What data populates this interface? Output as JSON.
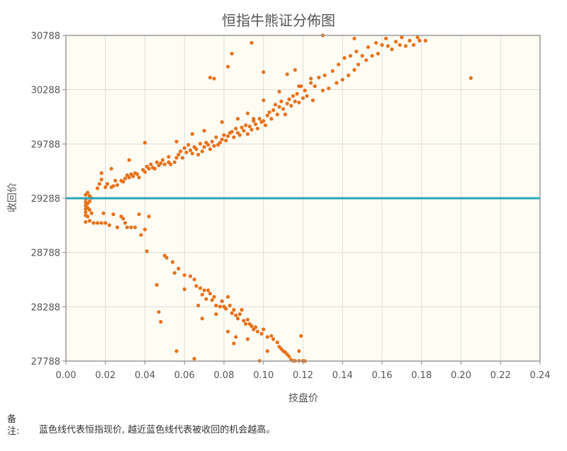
{
  "chart_data": {
    "type": "scatter",
    "title": "恒指牛熊证分佈图",
    "xlabel": "技盘价",
    "ylabel": "收回价",
    "xlim": [
      0,
      0.24
    ],
    "ylim": [
      27788,
      30788
    ],
    "x_ticks": [
      "0.00",
      "0.02",
      "0.04",
      "0.06",
      "0.08",
      "0.10",
      "0.12",
      "0.14",
      "0.16",
      "0.18",
      "0.20",
      "0.22",
      "0.24"
    ],
    "y_ticks": [
      "27788",
      "28288",
      "28788",
      "29288",
      "29788",
      "30288",
      "30788"
    ],
    "reference_line": {
      "y": 29288,
      "color": "#2aa5b8"
    },
    "grid": true,
    "point_color": "#e8701a",
    "plot_background": "#fffdf3",
    "points": [
      [
        0.01,
        29320
      ],
      [
        0.01,
        29280
      ],
      [
        0.01,
        29250
      ],
      [
        0.01,
        29220
      ],
      [
        0.01,
        29190
      ],
      [
        0.01,
        29160
      ],
      [
        0.01,
        29130
      ],
      [
        0.01,
        29070
      ],
      [
        0.011,
        29340
      ],
      [
        0.011,
        29240
      ],
      [
        0.011,
        29200
      ],
      [
        0.011,
        29120
      ],
      [
        0.012,
        29310
      ],
      [
        0.012,
        29260
      ],
      [
        0.012,
        29180
      ],
      [
        0.012,
        29080
      ],
      [
        0.013,
        29290
      ],
      [
        0.013,
        29150
      ],
      [
        0.014,
        29060
      ],
      [
        0.016,
        29060
      ],
      [
        0.018,
        29060
      ],
      [
        0.02,
        29060
      ],
      [
        0.022,
        29040
      ],
      [
        0.016,
        29380
      ],
      [
        0.017,
        29420
      ],
      [
        0.018,
        29460
      ],
      [
        0.02,
        29390
      ],
      [
        0.021,
        29420
      ],
      [
        0.023,
        29390
      ],
      [
        0.024,
        29400
      ],
      [
        0.025,
        29450
      ],
      [
        0.026,
        29410
      ],
      [
        0.028,
        29450
      ],
      [
        0.029,
        29440
      ],
      [
        0.03,
        29470
      ],
      [
        0.031,
        29500
      ],
      [
        0.032,
        29480
      ],
      [
        0.033,
        29510
      ],
      [
        0.034,
        29490
      ],
      [
        0.035,
        29520
      ],
      [
        0.036,
        29510
      ],
      [
        0.037,
        29480
      ],
      [
        0.039,
        29550
      ],
      [
        0.04,
        29530
      ],
      [
        0.041,
        29580
      ],
      [
        0.042,
        29560
      ],
      [
        0.043,
        29600
      ],
      [
        0.044,
        29570
      ],
      [
        0.045,
        29560
      ],
      [
        0.046,
        29620
      ],
      [
        0.047,
        29590
      ],
      [
        0.048,
        29610
      ],
      [
        0.049,
        29640
      ],
      [
        0.05,
        29600
      ],
      [
        0.052,
        29620
      ],
      [
        0.053,
        29600
      ],
      [
        0.055,
        29620
      ],
      [
        0.056,
        29660
      ],
      [
        0.057,
        29690
      ],
      [
        0.058,
        29720
      ],
      [
        0.059,
        29660
      ],
      [
        0.06,
        29750
      ],
      [
        0.061,
        29710
      ],
      [
        0.062,
        29780
      ],
      [
        0.063,
        29730
      ],
      [
        0.064,
        29700
      ],
      [
        0.065,
        29760
      ],
      [
        0.066,
        29740
      ],
      [
        0.067,
        29690
      ],
      [
        0.068,
        29790
      ],
      [
        0.069,
        29720
      ],
      [
        0.07,
        29760
      ],
      [
        0.071,
        29800
      ],
      [
        0.072,
        29780
      ],
      [
        0.073,
        29740
      ],
      [
        0.074,
        29810
      ],
      [
        0.075,
        29770
      ],
      [
        0.076,
        29850
      ],
      [
        0.077,
        29780
      ],
      [
        0.078,
        29800
      ],
      [
        0.079,
        29830
      ],
      [
        0.08,
        29870
      ],
      [
        0.081,
        29820
      ],
      [
        0.082,
        29860
      ],
      [
        0.083,
        29890
      ],
      [
        0.084,
        29900
      ],
      [
        0.085,
        29850
      ],
      [
        0.086,
        29930
      ],
      [
        0.087,
        29890
      ],
      [
        0.088,
        29870
      ],
      [
        0.089,
        29940
      ],
      [
        0.09,
        29910
      ],
      [
        0.091,
        29960
      ],
      [
        0.092,
        29880
      ],
      [
        0.093,
        29950
      ],
      [
        0.094,
        29920
      ],
      [
        0.095,
        30000
      ],
      [
        0.096,
        29970
      ],
      [
        0.097,
        29930
      ],
      [
        0.098,
        30020
      ],
      [
        0.099,
        29990
      ],
      [
        0.1,
        30000
      ],
      [
        0.101,
        29960
      ],
      [
        0.102,
        30050
      ],
      [
        0.103,
        30080
      ],
      [
        0.104,
        30020
      ],
      [
        0.105,
        30100
      ],
      [
        0.106,
        30150
      ],
      [
        0.107,
        30060
      ],
      [
        0.108,
        30130
      ],
      [
        0.109,
        30180
      ],
      [
        0.11,
        30110
      ],
      [
        0.111,
        30060
      ],
      [
        0.112,
        30160
      ],
      [
        0.113,
        30200
      ],
      [
        0.114,
        30140
      ],
      [
        0.115,
        30230
      ],
      [
        0.116,
        30180
      ],
      [
        0.117,
        30250
      ],
      [
        0.118,
        30170
      ],
      [
        0.119,
        30320
      ],
      [
        0.12,
        30210
      ],
      [
        0.121,
        30280
      ],
      [
        0.122,
        30230
      ],
      [
        0.124,
        30350
      ],
      [
        0.125,
        30190
      ],
      [
        0.126,
        30320
      ],
      [
        0.128,
        30400
      ],
      [
        0.13,
        30280
      ],
      [
        0.131,
        30420
      ],
      [
        0.133,
        30300
      ],
      [
        0.135,
        30460
      ],
      [
        0.137,
        30350
      ],
      [
        0.138,
        30520
      ],
      [
        0.14,
        30380
      ],
      [
        0.141,
        30580
      ],
      [
        0.143,
        30420
      ],
      [
        0.144,
        30600
      ],
      [
        0.146,
        30470
      ],
      [
        0.147,
        30640
      ],
      [
        0.148,
        30520
      ],
      [
        0.15,
        30600
      ],
      [
        0.152,
        30560
      ],
      [
        0.153,
        30680
      ],
      [
        0.155,
        30600
      ],
      [
        0.157,
        30720
      ],
      [
        0.158,
        30620
      ],
      [
        0.16,
        30700
      ],
      [
        0.162,
        30760
      ],
      [
        0.163,
        30690
      ],
      [
        0.165,
        30660
      ],
      [
        0.167,
        30730
      ],
      [
        0.169,
        30700
      ],
      [
        0.17,
        30770
      ],
      [
        0.172,
        30690
      ],
      [
        0.174,
        30740
      ],
      [
        0.176,
        30700
      ],
      [
        0.178,
        30770
      ],
      [
        0.179,
        30740
      ],
      [
        0.182,
        30740
      ],
      [
        0.13,
        30788
      ],
      [
        0.146,
        30760
      ],
      [
        0.1,
        30450
      ],
      [
        0.082,
        30500
      ],
      [
        0.073,
        30400
      ],
      [
        0.075,
        30390
      ],
      [
        0.084,
        30620
      ],
      [
        0.094,
        30720
      ],
      [
        0.112,
        30430
      ],
      [
        0.116,
        30470
      ],
      [
        0.205,
        30395
      ],
      [
        0.018,
        29520
      ],
      [
        0.023,
        29560
      ],
      [
        0.032,
        29640
      ],
      [
        0.04,
        29800
      ],
      [
        0.052,
        29670
      ],
      [
        0.056,
        29810
      ],
      [
        0.064,
        29880
      ],
      [
        0.07,
        29910
      ],
      [
        0.079,
        29990
      ],
      [
        0.087,
        30020
      ],
      [
        0.092,
        30070
      ],
      [
        0.095,
        30020
      ],
      [
        0.1,
        30190
      ],
      [
        0.108,
        30270
      ],
      [
        0.118,
        30320
      ],
      [
        0.124,
        30390
      ],
      [
        0.019,
        29150
      ],
      [
        0.024,
        29140
      ],
      [
        0.028,
        29120
      ],
      [
        0.029,
        29100
      ],
      [
        0.03,
        29060
      ],
      [
        0.031,
        29020
      ],
      [
        0.033,
        29020
      ],
      [
        0.035,
        29020
      ],
      [
        0.026,
        29020
      ],
      [
        0.042,
        29120
      ],
      [
        0.041,
        28800
      ],
      [
        0.05,
        28760
      ],
      [
        0.051,
        28740
      ],
      [
        0.054,
        28700
      ],
      [
        0.057,
        28640
      ],
      [
        0.06,
        28580
      ],
      [
        0.063,
        28570
      ],
      [
        0.065,
        28540
      ],
      [
        0.066,
        28480
      ],
      [
        0.068,
        28460
      ],
      [
        0.069,
        28400
      ],
      [
        0.07,
        28440
      ],
      [
        0.071,
        28360
      ],
      [
        0.072,
        28440
      ],
      [
        0.073,
        28410
      ],
      [
        0.074,
        28350
      ],
      [
        0.075,
        28380
      ],
      [
        0.076,
        28300
      ],
      [
        0.078,
        28290
      ],
      [
        0.079,
        28340
      ],
      [
        0.08,
        28290
      ],
      [
        0.081,
        28270
      ],
      [
        0.082,
        28380
      ],
      [
        0.083,
        28300
      ],
      [
        0.084,
        28230
      ],
      [
        0.085,
        28260
      ],
      [
        0.086,
        28210
      ],
      [
        0.087,
        28180
      ],
      [
        0.088,
        28220
      ],
      [
        0.089,
        28260
      ],
      [
        0.09,
        28160
      ],
      [
        0.091,
        28130
      ],
      [
        0.092,
        28170
      ],
      [
        0.093,
        28130
      ],
      [
        0.094,
        28110
      ],
      [
        0.095,
        28080
      ],
      [
        0.096,
        28100
      ],
      [
        0.097,
        28060
      ],
      [
        0.099,
        28040
      ],
      [
        0.1,
        28080
      ],
      [
        0.102,
        28010
      ],
      [
        0.104,
        28020
      ],
      [
        0.105,
        27990
      ],
      [
        0.107,
        27960
      ],
      [
        0.108,
        27920
      ],
      [
        0.109,
        27900
      ],
      [
        0.11,
        27880
      ],
      [
        0.111,
        27870
      ],
      [
        0.112,
        27850
      ],
      [
        0.113,
        27830
      ],
      [
        0.114,
        27800
      ],
      [
        0.115,
        27790
      ],
      [
        0.116,
        27790
      ],
      [
        0.118,
        27790
      ],
      [
        0.12,
        27790
      ],
      [
        0.121,
        27788
      ],
      [
        0.119,
        28020
      ],
      [
        0.118,
        27880
      ],
      [
        0.102,
        27880
      ],
      [
        0.098,
        27790
      ],
      [
        0.086,
        28010
      ],
      [
        0.082,
        28060
      ],
      [
        0.076,
        28220
      ],
      [
        0.069,
        28180
      ],
      [
        0.067,
        28300
      ],
      [
        0.06,
        28450
      ],
      [
        0.055,
        28600
      ],
      [
        0.047,
        28240
      ],
      [
        0.048,
        28150
      ],
      [
        0.046,
        28490
      ],
      [
        0.056,
        27880
      ],
      [
        0.065,
        27810
      ],
      [
        0.085,
        27950
      ],
      [
        0.092,
        27990
      ],
      [
        0.04,
        29000
      ],
      [
        0.037,
        29140
      ],
      [
        0.038,
        28950
      ]
    ]
  },
  "note": {
    "label": "备注:",
    "text": "蓝色线代表恒指现价, 越近蓝色线代表被收回的机会越高。"
  }
}
